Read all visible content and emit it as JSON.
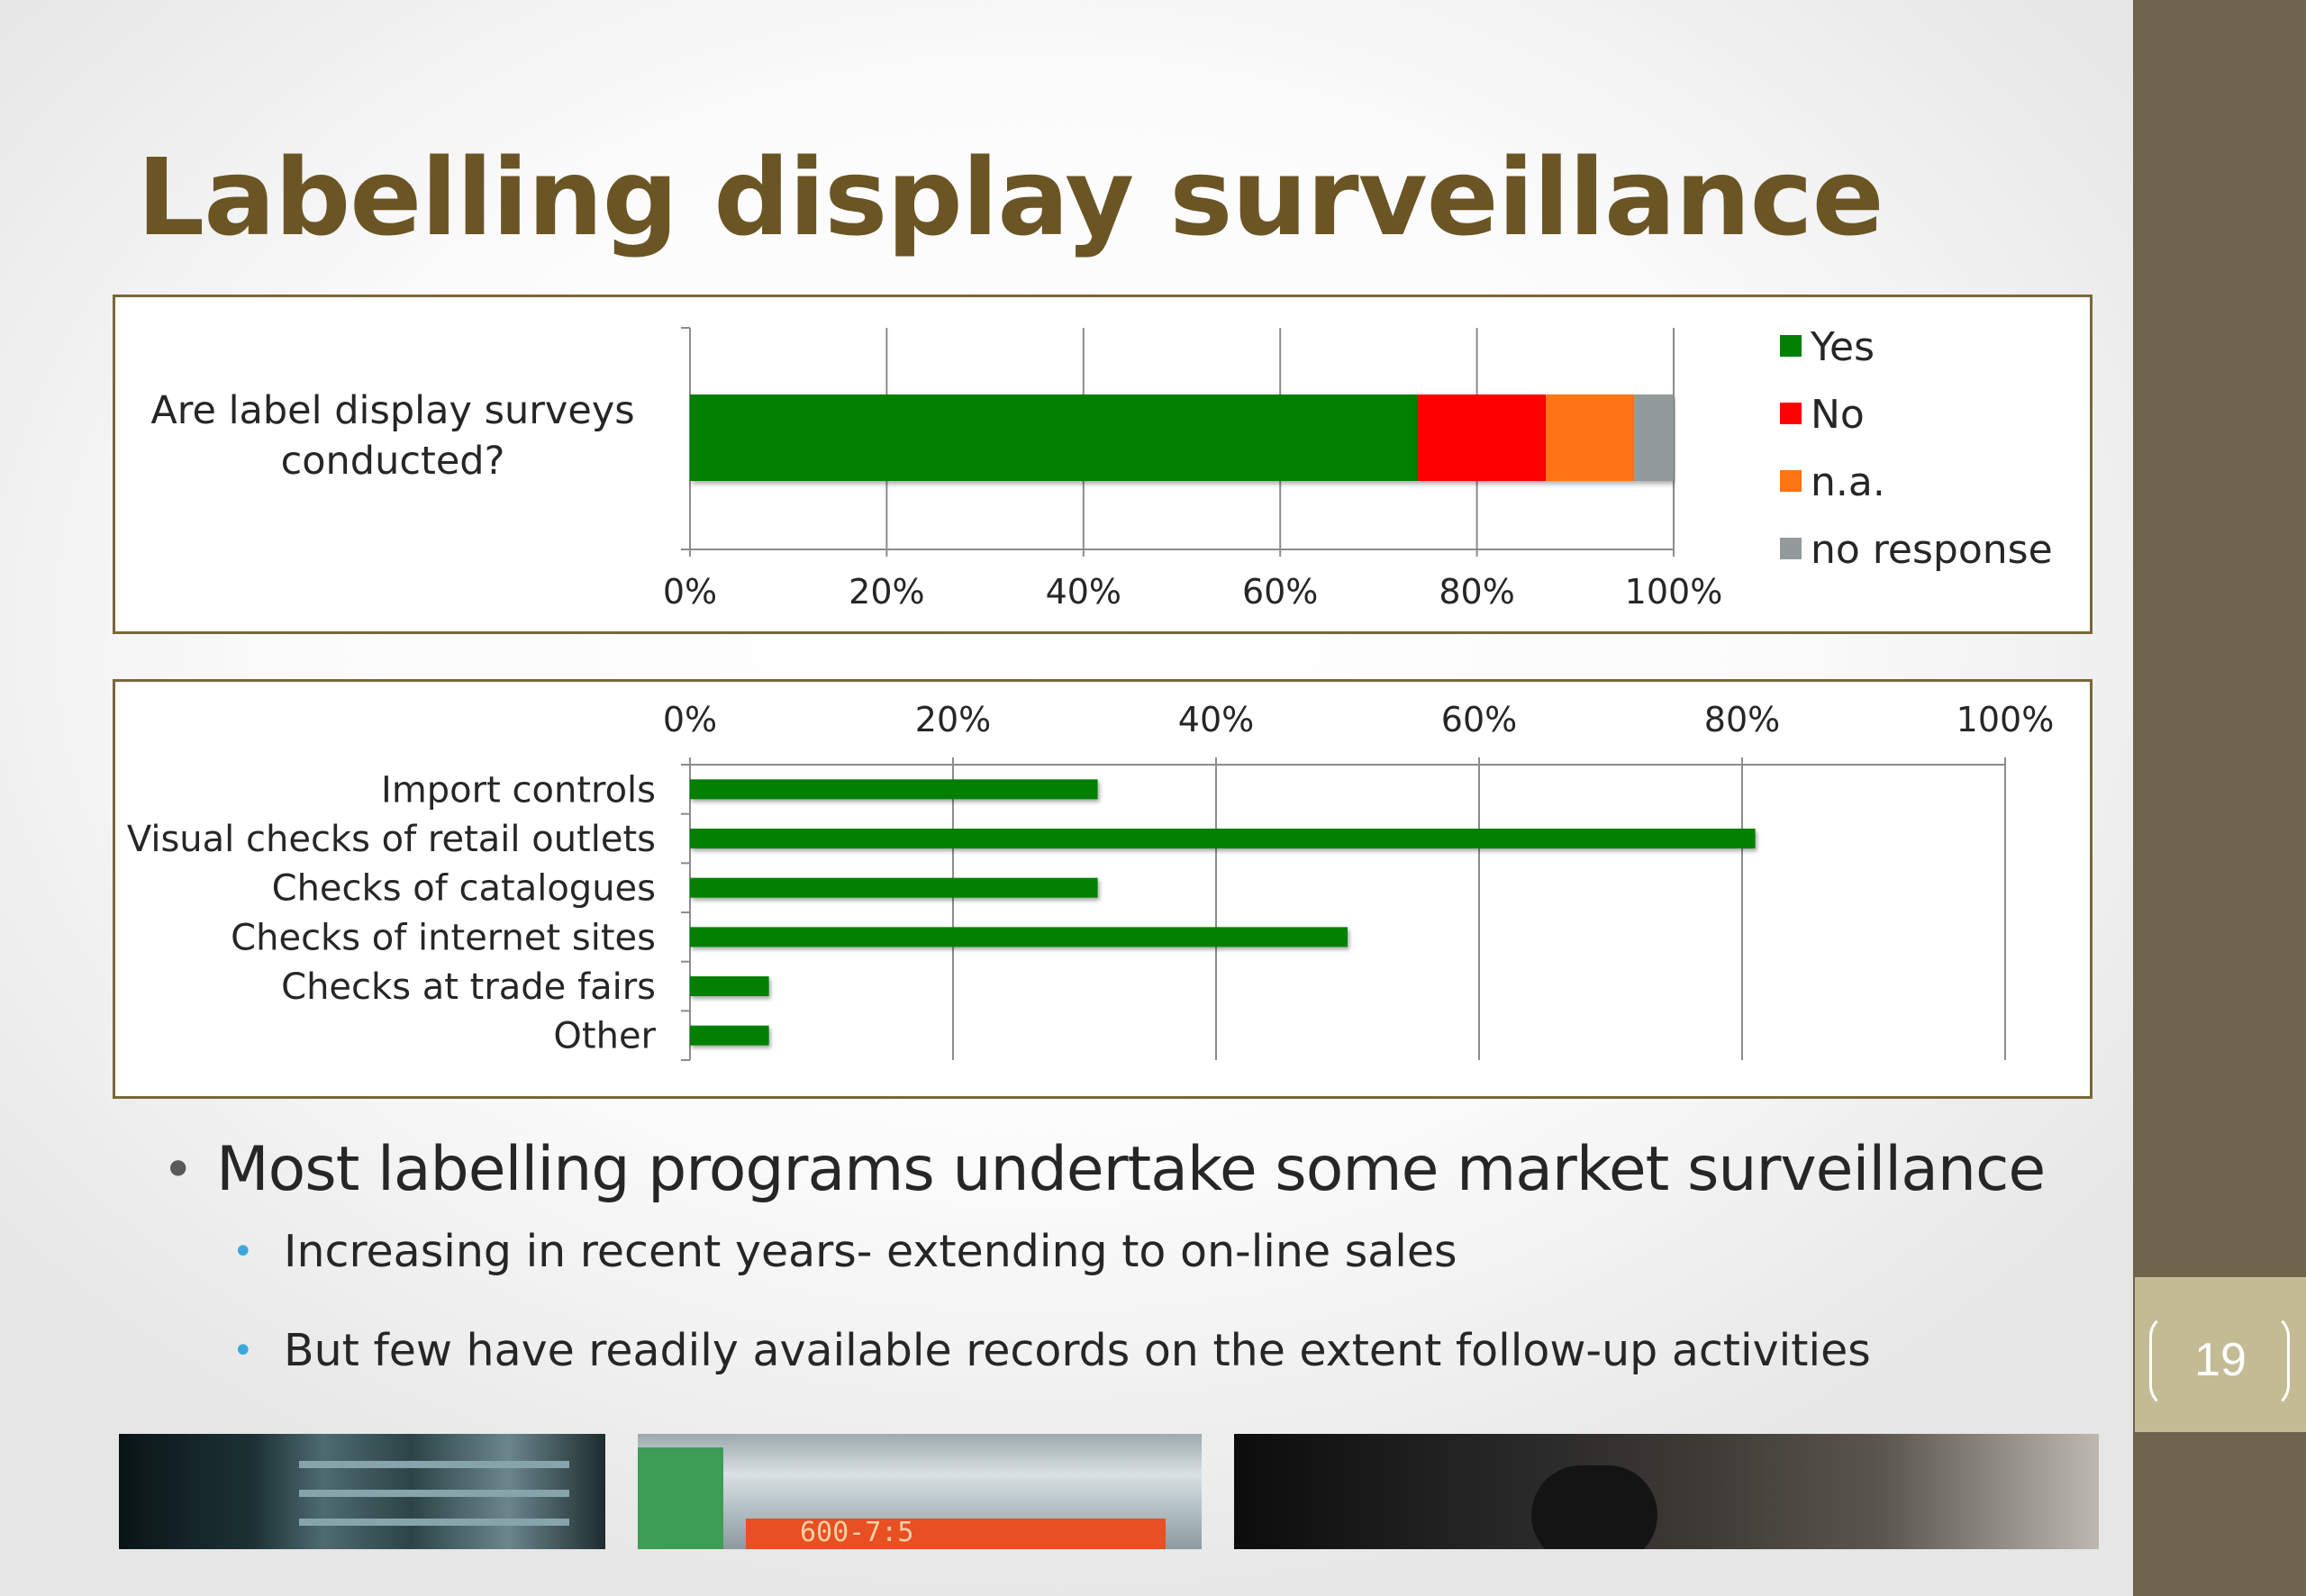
{
  "slide": {
    "title": "Labelling display surveillance",
    "page_number": "19"
  },
  "chart_data": [
    {
      "type": "bar",
      "orientation": "horizontal",
      "stacked": true,
      "percent": true,
      "categories": [
        "Are label display surveys conducted?"
      ],
      "category_lines": [
        "Are label display surveys",
        "conducted?"
      ],
      "series": [
        {
          "name": "Yes",
          "values": [
            74
          ],
          "color": "#008000"
        },
        {
          "name": "No",
          "values": [
            13
          ],
          "color": "#ff0000"
        },
        {
          "name": "n.a.",
          "values": [
            9
          ],
          "color": "#ff7514"
        },
        {
          "name": "no response",
          "values": [
            4
          ],
          "color": "#929b9a"
        }
      ],
      "xlim": [
        0,
        100
      ],
      "xticks": [
        "0%",
        "20%",
        "40%",
        "60%",
        "80%",
        "100%"
      ],
      "axis_position": "bottom",
      "grid": true,
      "legend": "right"
    },
    {
      "type": "bar",
      "orientation": "horizontal",
      "categories": [
        "Import controls",
        "Visual checks of retail outlets",
        "Checks of catalogues",
        "Checks of internet sites",
        "Checks at trade fairs",
        "Other"
      ],
      "values": [
        31,
        81,
        31,
        50,
        6,
        6
      ],
      "color": "#008000",
      "xlim": [
        0,
        100
      ],
      "xticks": [
        "0%",
        "20%",
        "40%",
        "60%",
        "80%",
        "100%"
      ],
      "axis_position": "top",
      "grid": true,
      "legend": "none"
    }
  ],
  "bullets": {
    "main": "Most labelling programs undertake some market surveillance",
    "subs": [
      "Increasing in recent years- extending to on-line sales",
      "But few have readily available records on the extent follow-up activities"
    ]
  },
  "photos": {
    "photo_2_text": "600-7:5"
  }
}
